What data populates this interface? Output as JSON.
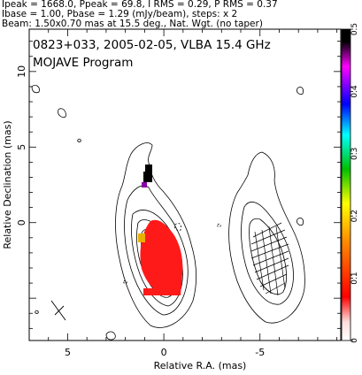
{
  "header": {
    "line1": "Ipeak = 1668.0, Ppeak = 69.8, I RMS = 0.29, P RMS = 0.37",
    "line2": "Ibase = 1.00, Pbase = 1.29 (mJy/beam), steps: x 2",
    "line3": "Beam: 1.50x0.70 mas at 15.5 deg., Nat. Wgt. (no taper)"
  },
  "colorbar": {
    "min": 0,
    "max": 0.5,
    "ticks": [
      "0",
      "0.1",
      "0.2",
      "0.3",
      "0.4",
      "0.5"
    ],
    "colors": [
      "#ffffff",
      "#ff0000",
      "#ff8c00",
      "#ffff00",
      "#00c000",
      "#00ffff",
      "#0000ff",
      "#ff00ff",
      "#000000"
    ]
  },
  "chart_data": {
    "type": "heatmap",
    "title": "0823+033, 2005-02-05, VLBA 15.4 GHz",
    "subtitle": "MOJAVE Program",
    "xlabel": "Relative R.A. (mas)",
    "ylabel": "Relative Declination (mas)",
    "xlim": [
      7,
      -9.2
    ],
    "ylim": [
      -7.8,
      12.8
    ],
    "x_ticks": [
      "5",
      "0",
      "-5"
    ],
    "y_ticks": [
      "0",
      "5",
      "10"
    ],
    "x_tick_values": [
      5,
      0,
      -5
    ],
    "y_tick_values": [
      0,
      5,
      10
    ],
    "colorbar_range": [
      0,
      0.5
    ]
  }
}
